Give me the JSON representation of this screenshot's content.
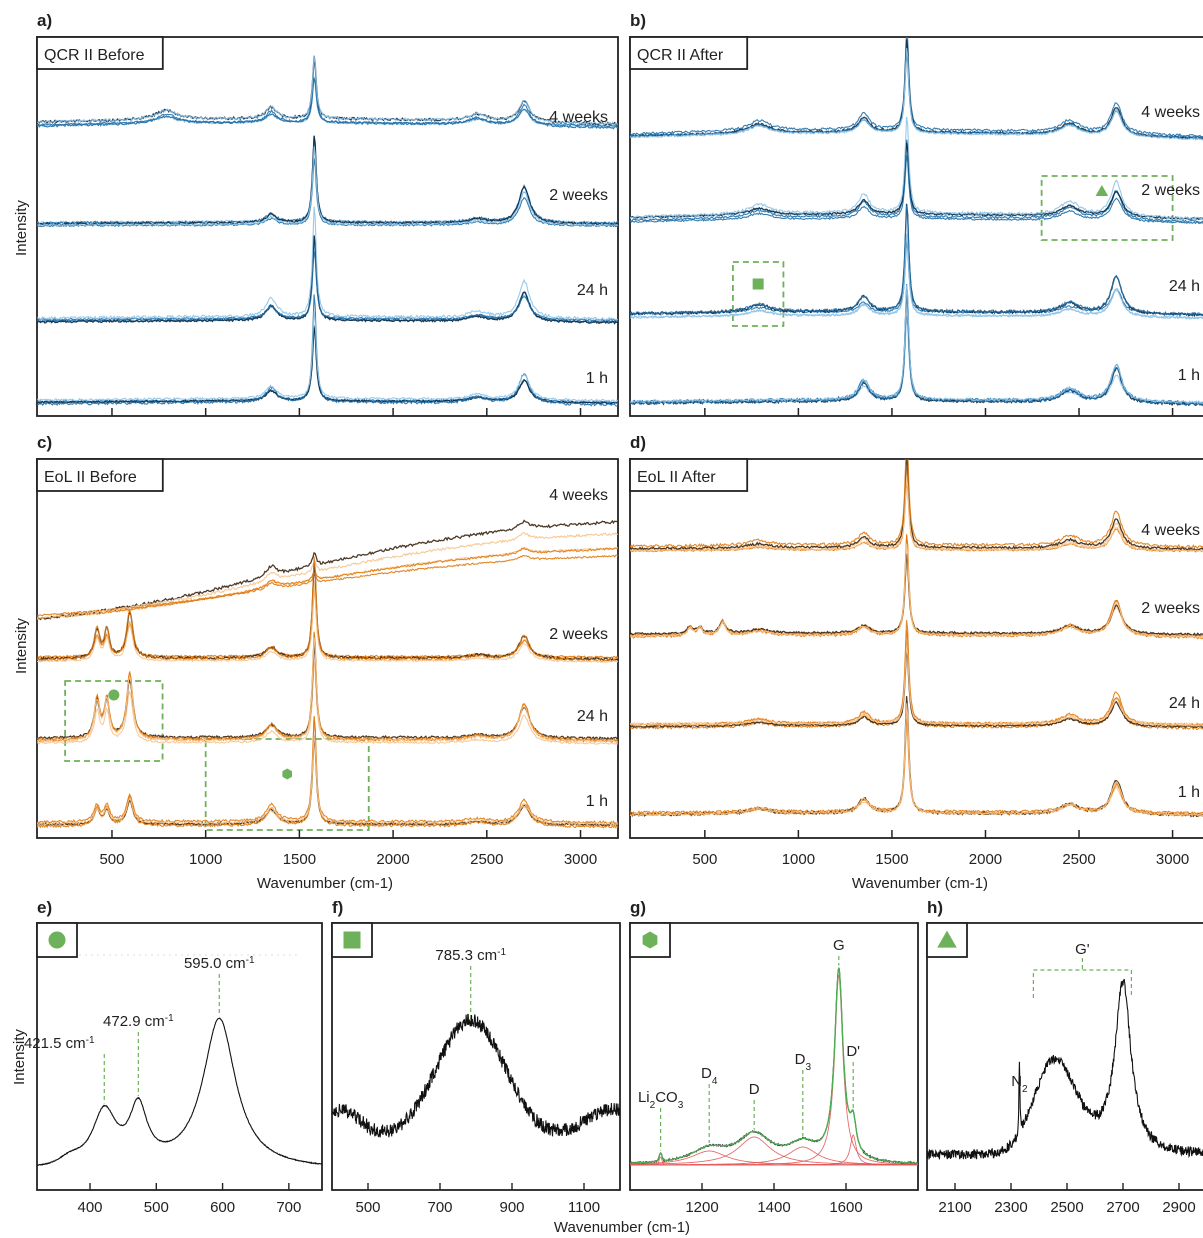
{
  "colors": {
    "blue_dark": "#0b2a45",
    "blue_mid": "#1f6fa8",
    "blue_light": "#8fc3e6",
    "orange_dark": "#3a2410",
    "orange_mid": "#e07a10",
    "orange_light": "#f6c48c",
    "box_green": "#6db15a",
    "fit_red": "#e05555",
    "fit_green": "#4caf50",
    "spectrum_black": "#111111"
  },
  "figure": {
    "xlabel_main": "Wavenumber",
    "xlabel_unit": "(cm-1)",
    "ylabel": "Intensity",
    "xlabel_bottom": "Wavenumber"
  },
  "chart_data": [
    {
      "panel": "a)",
      "tag": "QCR II Before",
      "type": "line",
      "palette": "blue",
      "x_range": [
        100,
        3200
      ],
      "show_tick_labels": false,
      "series": [
        {
          "name": "4 weeks"
        },
        {
          "name": "2 weeks"
        },
        {
          "name": "24 h"
        },
        {
          "name": "1 h"
        }
      ],
      "peaks_cm1": {
        "D": 1350,
        "G": 1580,
        "Gprime": 2700
      }
    },
    {
      "panel": "b)",
      "tag": "QCR II After",
      "type": "line",
      "palette": "blue",
      "x_range": [
        100,
        3200
      ],
      "show_tick_labels": false,
      "series": [
        {
          "name": "4 weeks"
        },
        {
          "name": "2 weeks"
        },
        {
          "name": "24 h"
        },
        {
          "name": "1 h"
        }
      ],
      "markers": [
        {
          "shape": "square",
          "x_range_cm1": [
            650,
            920
          ]
        },
        {
          "shape": "triangle",
          "x_range_cm1": [
            2300,
            3000
          ]
        }
      ]
    },
    {
      "panel": "c)",
      "tag": "EoL II Before",
      "type": "line",
      "palette": "orange",
      "x_range": [
        100,
        3200
      ],
      "xticks": [
        500,
        1000,
        1500,
        2000,
        2500,
        3000
      ],
      "series": [
        {
          "name": "4 weeks"
        },
        {
          "name": "2 weeks"
        },
        {
          "name": "24 h"
        },
        {
          "name": "1 h"
        }
      ],
      "markers": [
        {
          "shape": "circle",
          "x_range_cm1": [
            250,
            770
          ]
        },
        {
          "shape": "hexagon",
          "x_range_cm1": [
            1000,
            1870
          ]
        }
      ]
    },
    {
      "panel": "d)",
      "tag": "EoL II After",
      "type": "line",
      "palette": "orange",
      "x_range": [
        100,
        3200
      ],
      "xticks": [
        500,
        1000,
        1500,
        2000,
        2500,
        3000
      ],
      "series": [
        {
          "name": "4 weeks"
        },
        {
          "name": "2 weeks"
        },
        {
          "name": "24 h"
        },
        {
          "name": "1 h"
        }
      ]
    },
    {
      "panel": "e)",
      "marker": "circle",
      "type": "line",
      "x_range": [
        320,
        750
      ],
      "xticks": [
        400,
        500,
        600,
        700
      ],
      "peaks": [
        {
          "x": 421.5,
          "label": "421.5",
          "unit": "cm-1"
        },
        {
          "x": 472.9,
          "label": "472.9",
          "unit": "cm-1"
        },
        {
          "x": 595.0,
          "label": "595.0",
          "unit": "cm-1"
        }
      ]
    },
    {
      "panel": "f)",
      "marker": "square",
      "type": "line",
      "x_range": [
        400,
        1200
      ],
      "xticks": [
        500,
        700,
        900,
        1100
      ],
      "peaks": [
        {
          "x": 785.3,
          "label": "785.3",
          "unit": "cm-1"
        }
      ]
    },
    {
      "panel": "g)",
      "marker": "hexagon",
      "type": "line",
      "x_range": [
        1000,
        1800
      ],
      "xticks": [
        1200,
        1400,
        1600
      ],
      "peaks": [
        {
          "x": 1085,
          "label": "Li2CO3"
        },
        {
          "x": 1220,
          "label": "D4"
        },
        {
          "x": 1345,
          "label": "D"
        },
        {
          "x": 1480,
          "label": "D3"
        },
        {
          "x": 1580,
          "label": "G"
        },
        {
          "x": 1620,
          "label": "D'"
        }
      ]
    },
    {
      "panel": "h)",
      "marker": "triangle",
      "type": "line",
      "x_range": [
        2000,
        3000
      ],
      "xticks": [
        2100,
        2300,
        2500,
        2700,
        2900
      ],
      "peaks": [
        {
          "x": 2330,
          "label": "N2"
        },
        {
          "x": 2700,
          "label": "G'",
          "bracket_cm1": [
            2380,
            2730
          ]
        }
      ]
    }
  ]
}
